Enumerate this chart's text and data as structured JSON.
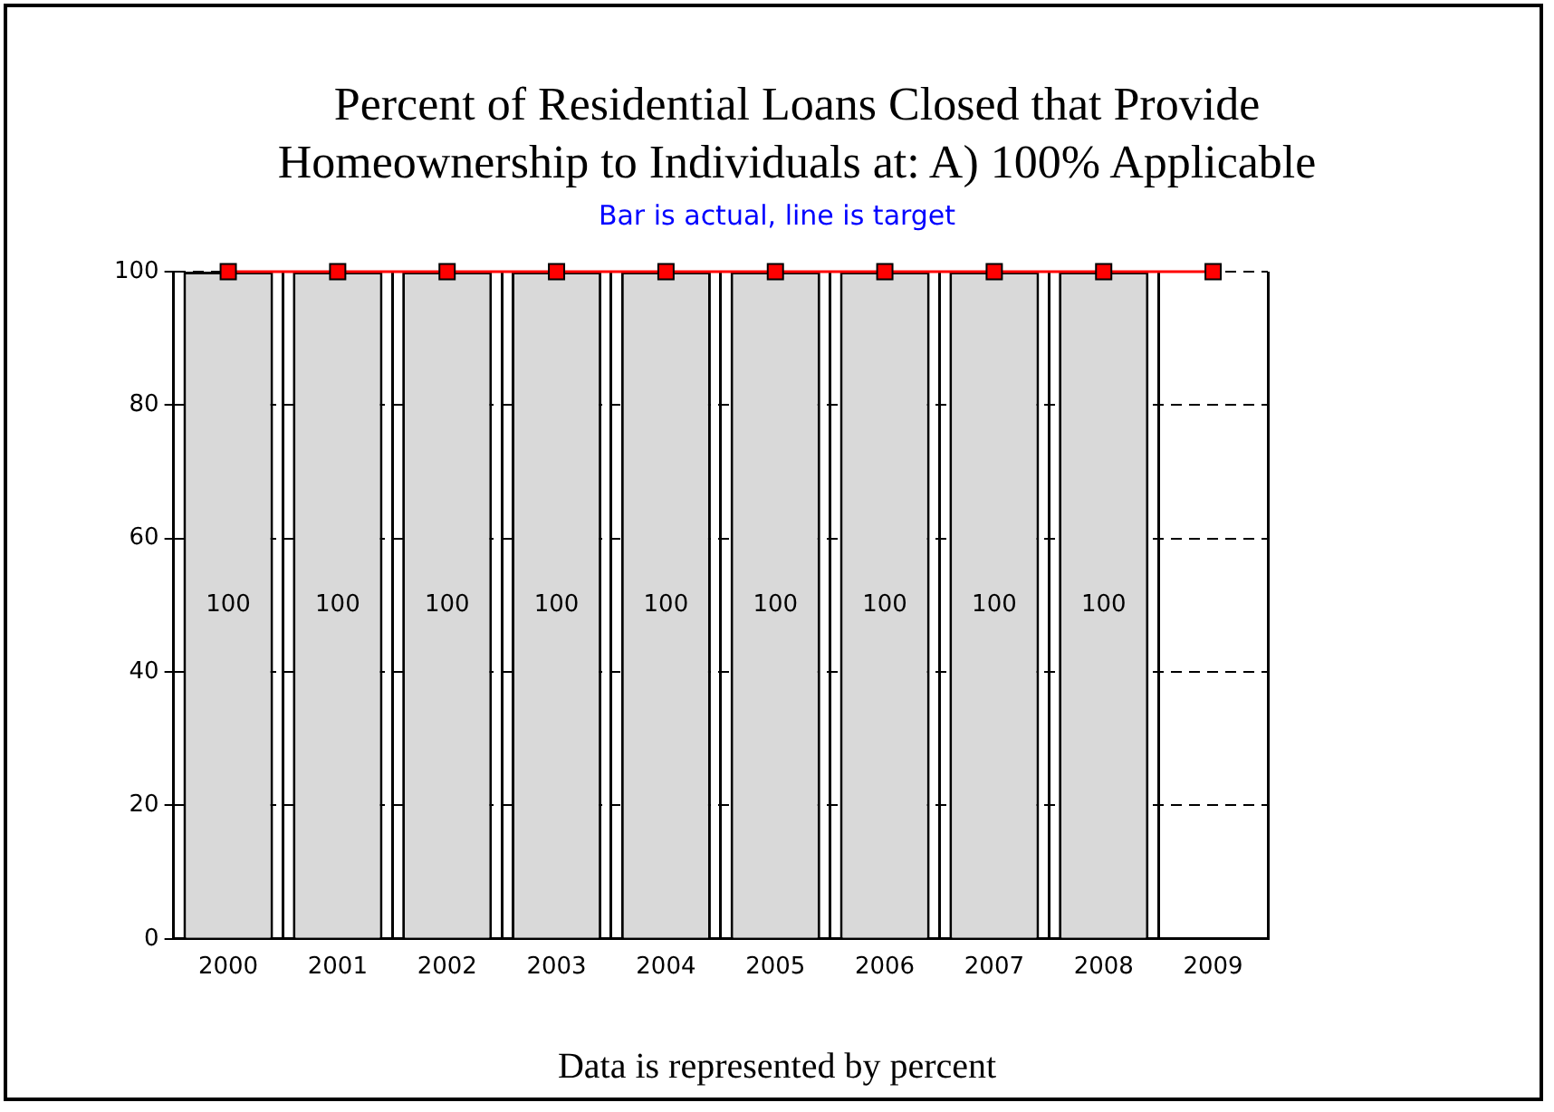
{
  "chart_data": {
    "type": "bar",
    "title": "Percent of Residential Loans Closed that Provide Homeownership to Individuals at:  A) 100% Applicable",
    "subtitle": "Bar is actual, line is target",
    "annotations": [
      "Data is represented by percent"
    ],
    "categories": [
      "2000",
      "2001",
      "2002",
      "2003",
      "2004",
      "2005",
      "2006",
      "2007",
      "2008",
      "2009"
    ],
    "series": [
      {
        "color": "#d9d9d9",
        "values": [
          100,
          100,
          100,
          100,
          100,
          100,
          100,
          100,
          100,
          null
        ],
        "value_labels": [
          "100",
          "100",
          "100",
          "100",
          "100",
          "100",
          "100",
          "100",
          "100",
          null
        ]
      },
      {
        "type": "line",
        "color": "#ff0000",
        "marker": "square",
        "values": [
          100,
          100,
          100,
          100,
          100,
          100,
          100,
          100,
          100,
          100
        ]
      }
    ],
    "ylim": [
      0,
      100
    ],
    "yticks": [
      0,
      20,
      40,
      60,
      80,
      100
    ],
    "grid": true
  }
}
